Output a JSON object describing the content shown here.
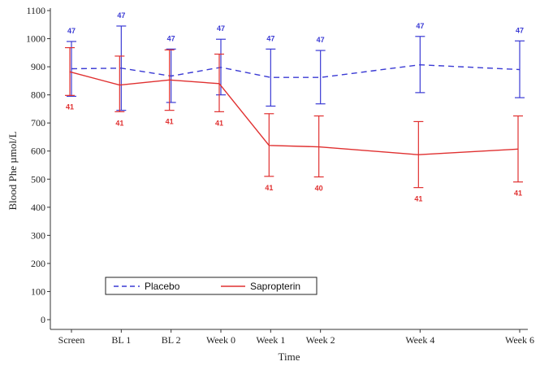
{
  "chart_data": {
    "type": "line",
    "title": "",
    "xlabel": "Time",
    "ylabel": "Blood Phe µmol/L",
    "ylim": [
      0,
      1100
    ],
    "yticks": [
      0,
      100,
      200,
      300,
      400,
      500,
      600,
      700,
      800,
      900,
      1000,
      1100
    ],
    "categories": [
      "Screen",
      "BL 1",
      "BL 2",
      "Week 0",
      "Week 1",
      "Week 2",
      "Week 4",
      "Week 6"
    ],
    "x_weeks": [
      -3,
      -2,
      -1,
      0,
      1,
      2,
      4,
      6
    ],
    "legend_position": "bottom-left",
    "grid": false,
    "series": [
      {
        "name": "Placebo",
        "style": "dashed",
        "color": "#3a3ad4",
        "values": [
          893,
          895,
          867,
          898,
          862,
          862,
          907,
          890
        ],
        "err_low": [
          795,
          745,
          773,
          800,
          760,
          768,
          808,
          790
        ],
        "err_high": [
          990,
          1045,
          963,
          998,
          963,
          958,
          1008,
          992
        ],
        "n_labels": [
          "47",
          "47",
          "47",
          "47",
          "47",
          "47",
          "47",
          "47"
        ]
      },
      {
        "name": "Sapropterin",
        "style": "solid",
        "color": "#e03030",
        "values": [
          882,
          835,
          853,
          840,
          620,
          615,
          587,
          607
        ],
        "err_low": [
          798,
          740,
          745,
          740,
          510,
          508,
          470,
          490
        ],
        "err_high": [
          968,
          938,
          960,
          945,
          733,
          725,
          705,
          725
        ],
        "n_labels": [
          "41",
          "41",
          "41",
          "41",
          "41",
          "40",
          "41",
          "41"
        ]
      }
    ]
  }
}
